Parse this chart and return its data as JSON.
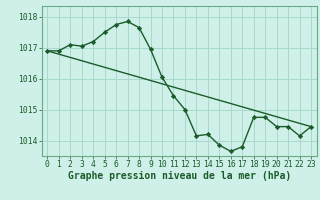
{
  "title": "Graphe pression niveau de la mer (hPa)",
  "background_color": "#cff0e8",
  "grid_color": "#a8d8cc",
  "line_color": "#1a5c2a",
  "marker_color": "#1a5c2a",
  "xlim": [
    -0.5,
    23.5
  ],
  "ylim": [
    1013.5,
    1018.35
  ],
  "yticks": [
    1014,
    1015,
    1016,
    1017,
    1018
  ],
  "xticks": [
    0,
    1,
    2,
    3,
    4,
    5,
    6,
    7,
    8,
    9,
    10,
    11,
    12,
    13,
    14,
    15,
    16,
    17,
    18,
    19,
    20,
    21,
    22,
    23
  ],
  "series1_x": [
    0,
    1,
    2,
    3,
    4,
    5,
    6,
    7,
    8,
    9,
    10,
    11,
    12,
    13,
    14,
    15,
    16,
    17,
    18,
    19,
    20,
    21,
    22,
    23
  ],
  "series1_y": [
    1016.9,
    1016.9,
    1017.1,
    1017.05,
    1017.2,
    1017.5,
    1017.75,
    1017.85,
    1017.65,
    1016.95,
    1016.05,
    1015.45,
    1015.0,
    1014.15,
    1014.2,
    1013.85,
    1013.65,
    1013.8,
    1014.75,
    1014.75,
    1014.45,
    1014.45,
    1014.15,
    1014.45
  ],
  "series2_x": [
    0,
    23
  ],
  "series2_y": [
    1016.9,
    1014.45
  ],
  "tick_fontsize": 5.8,
  "title_fontsize": 7.0,
  "tick_color": "#1a5c2a",
  "spine_color": "#6aaa88"
}
